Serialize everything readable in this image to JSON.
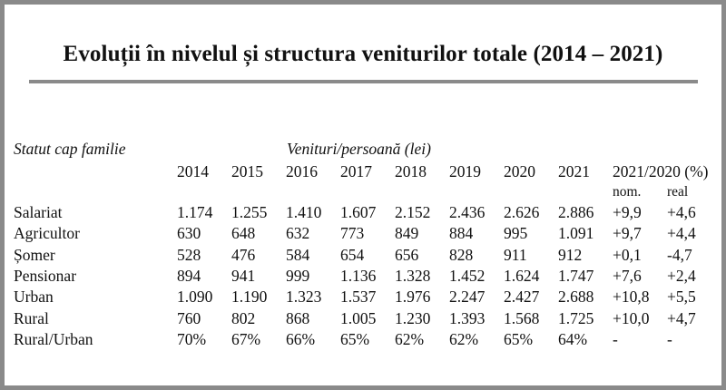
{
  "title": "Evoluții în nivelul și structura veniturilor totale (2014 – 2021)",
  "table": {
    "row_header_label": "Statut cap familie",
    "group_header_label": "Venituri/persoană (lei)",
    "years": [
      "2014",
      "2015",
      "2016",
      "2017",
      "2018",
      "2019",
      "2020",
      "2021"
    ],
    "change_header": "2021/2020 (%)",
    "change_subheaders": [
      "nom.",
      "real"
    ],
    "rows": [
      {
        "label": "Salariat",
        "values": [
          "1.174",
          "1.255",
          "1.410",
          "1.607",
          "2.152",
          "2.436",
          "2.626",
          "2.886"
        ],
        "nom": "+9,9",
        "real": "+4,6"
      },
      {
        "label": "Agricultor",
        "values": [
          "630",
          "648",
          "632",
          "773",
          "849",
          "884",
          "995",
          "1.091"
        ],
        "nom": "+9,7",
        "real": "+4,4"
      },
      {
        "label": "Șomer",
        "values": [
          "528",
          "476",
          "584",
          "654",
          "656",
          "828",
          "911",
          "912"
        ],
        "nom": "+0,1",
        "real": "-4,7"
      },
      {
        "label": "Pensionar",
        "values": [
          "894",
          "941",
          "999",
          "1.136",
          "1.328",
          "1.452",
          "1.624",
          "1.747"
        ],
        "nom": "+7,6",
        "real": "+2,4"
      },
      {
        "label": "Urban",
        "values": [
          "1.090",
          "1.190",
          "1.323",
          "1.537",
          "1.976",
          "2.247",
          "2.427",
          "2.688"
        ],
        "nom": "+10,8",
        "real": "+5,5"
      },
      {
        "label": "Rural",
        "values": [
          "760",
          "802",
          "868",
          "1.005",
          "1.230",
          "1.393",
          "1.568",
          "1.725"
        ],
        "nom": "+10,0",
        "real": "+4,7"
      },
      {
        "label": "Rural/Urban",
        "values": [
          "70%",
          "67%",
          "66%",
          "65%",
          "62%",
          "62%",
          "65%",
          "64%"
        ],
        "nom": "-",
        "real": "-"
      }
    ]
  }
}
